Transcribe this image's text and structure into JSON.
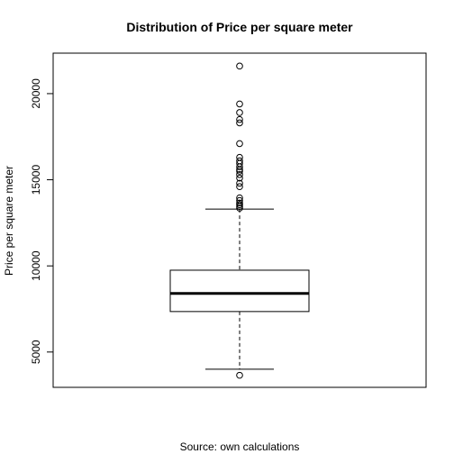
{
  "chart_data": {
    "type": "box",
    "title": "Distribution of Price per square meter",
    "xlabel": "Source: own calculations",
    "ylabel": "Price per square meter",
    "ylim": [
      2950,
      22350
    ],
    "yticks": [
      5000,
      10000,
      15000,
      20000
    ],
    "grid": false,
    "box": {
      "lower_whisker": 4000,
      "q1": 7350,
      "median": 8400,
      "q3": 9750,
      "upper_whisker": 13300
    },
    "outliers": [
      3650,
      13350,
      13450,
      13550,
      13650,
      13800,
      13950,
      14600,
      14800,
      15100,
      15300,
      15500,
      15600,
      15750,
      15950,
      16100,
      16300,
      17100,
      18300,
      18500,
      18900,
      19400,
      21600
    ]
  }
}
